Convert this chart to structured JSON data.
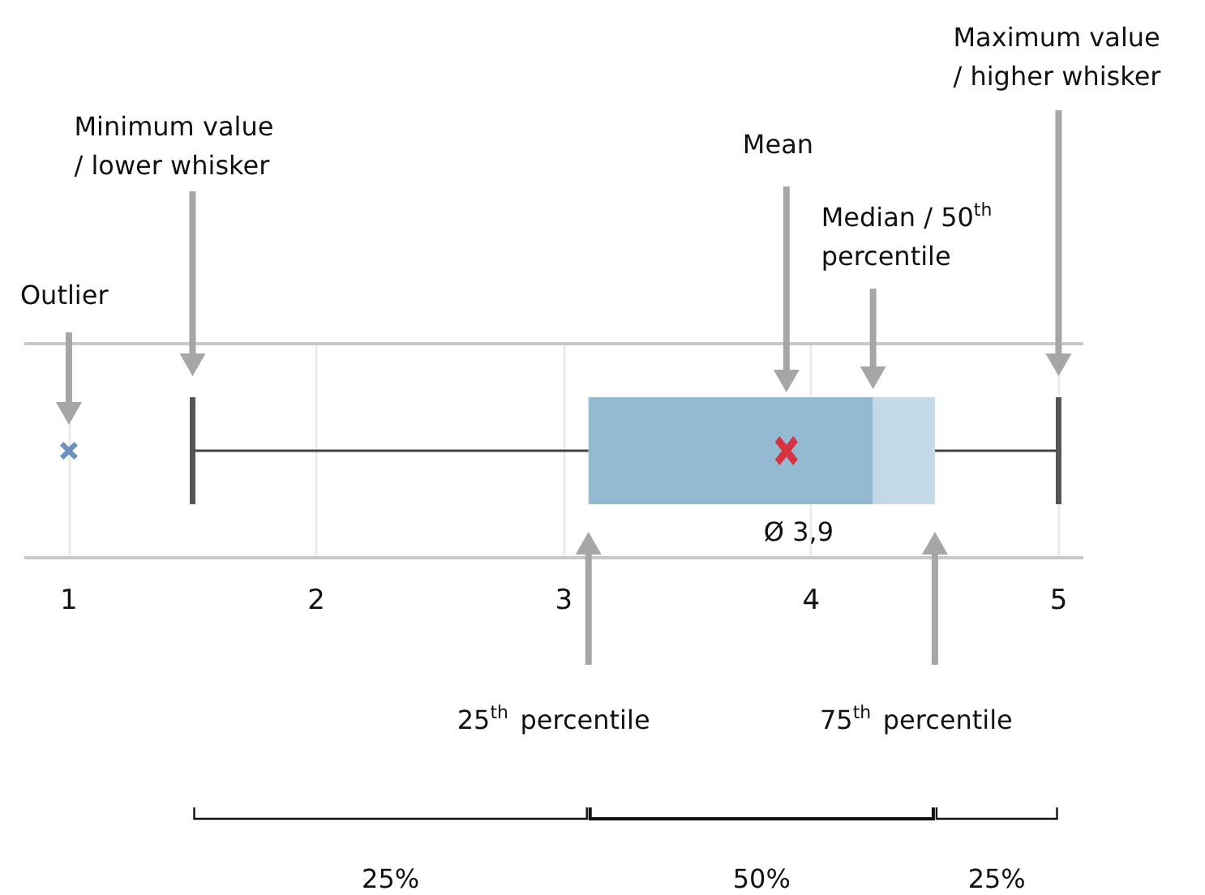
{
  "chart_data": {
    "type": "box",
    "orientation": "horizontal",
    "categories": [
      null
    ],
    "color": "#93b9d3",
    "marker": "cross",
    "boxes": [
      {
        "low": 1.5,
        "q1": 3.1,
        "median": 4.25,
        "q3": 4.5,
        "high": 5,
        "mean": 3.9,
        "outliers": [
          1
        ]
      }
    ],
    "xlim": [
      0.82,
      5.1
    ],
    "xticks": [
      1,
      2,
      3,
      4,
      5
    ],
    "grid": "x",
    "annotations": [
      "Outlier",
      "Minimum value / lower whisker",
      "Mean",
      "Median / 50$^{th}$ percentile",
      "Maximum value / higher whisker",
      "25$^{th}$ percentile",
      "75$^{th}$ percentile",
      "Ø 3,9",
      "25%",
      "50%",
      "25%"
    ]
  }
}
